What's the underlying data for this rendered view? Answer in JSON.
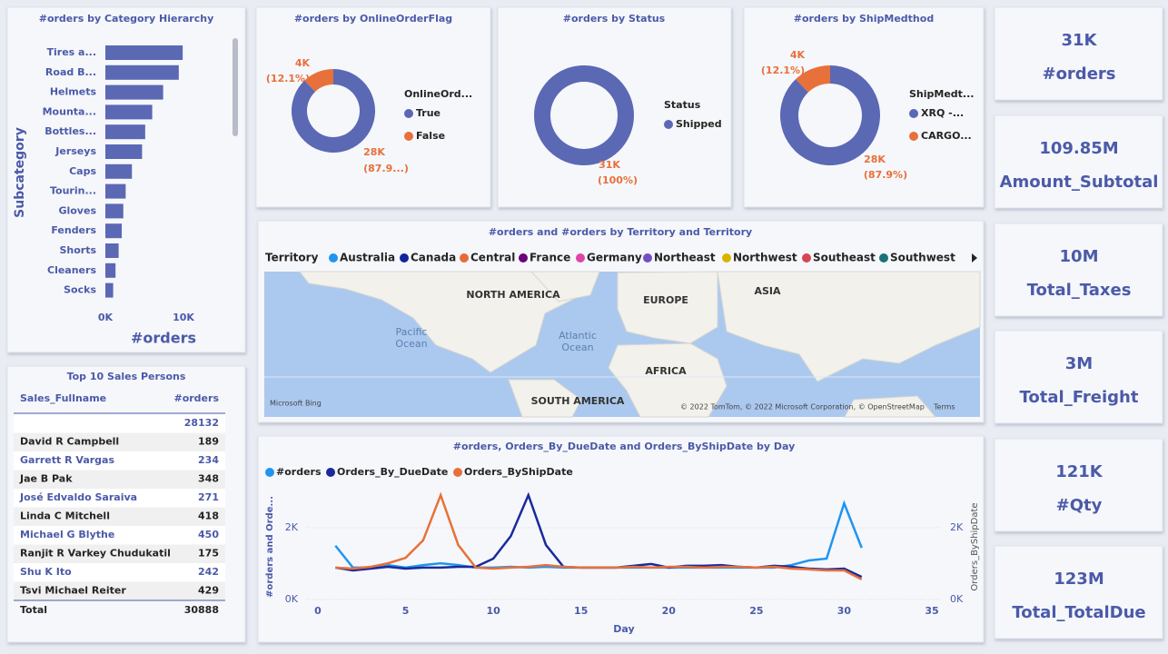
{
  "chart_data": [
    {
      "type": "bar",
      "orientation": "horizontal",
      "title": "#orders by Category Hierarchy",
      "y_label": "Subcategory",
      "x_label": "#orders",
      "categories": [
        "Tires a...",
        "Road B...",
        "Helmets",
        "Mounta...",
        "Bottles...",
        "Jerseys",
        "Caps",
        "Tourin...",
        "Gloves",
        "Fenders",
        "Shorts",
        "Cleaners",
        "Socks"
      ],
      "values": [
        9900,
        9400,
        7400,
        6000,
        5100,
        4700,
        3400,
        2600,
        2300,
        2100,
        1700,
        1300,
        1000
      ],
      "color": "#5b68b4",
      "xlim": [
        0,
        15000
      ],
      "xticks": [
        {
          "value": 0,
          "label": "0K"
        },
        {
          "value": 10000,
          "label": "10K"
        }
      ]
    },
    {
      "type": "donut",
      "title": "#orders by OnlineOrderFlag",
      "legend_title": "OnlineOrd...",
      "categories": [
        "True",
        "False"
      ],
      "values": [
        27659,
        3806
      ],
      "value_labels": [
        "28K",
        "4K"
      ],
      "percent_labels": [
        "(87.9...)",
        "(12.1%)"
      ],
      "colors": [
        "#5b68b4",
        "#e8703a"
      ]
    },
    {
      "type": "donut",
      "title": "#orders by Status",
      "legend_title": "Status",
      "categories": [
        "Shipped"
      ],
      "values": [
        31465
      ],
      "value_labels": [
        "31K"
      ],
      "percent_labels": [
        "(100%)"
      ],
      "colors": [
        "#5b68b4"
      ]
    },
    {
      "type": "donut",
      "title": "#orders by ShipMedthod",
      "legend_title": "ShipMedt...",
      "categories": [
        "XRQ -...",
        "CARGO..."
      ],
      "values": [
        27659,
        3806
      ],
      "value_labels": [
        "28K",
        "4K"
      ],
      "percent_labels": [
        "(87.9%)",
        "(12.1%)"
      ],
      "colors": [
        "#5b68b4",
        "#e8703a"
      ]
    },
    {
      "type": "line",
      "title": "#orders, Orders_By_DueDate and Orders_ByShipDate by Day",
      "x_label": "Day",
      "y_label": "#orders and Orde...",
      "y2_label": "Orders_ByShipDate",
      "x": [
        1,
        2,
        3,
        4,
        5,
        6,
        7,
        8,
        9,
        10,
        11,
        12,
        13,
        14,
        15,
        16,
        17,
        18,
        19,
        20,
        21,
        22,
        23,
        24,
        25,
        26,
        27,
        28,
        29,
        30,
        31
      ],
      "series": [
        {
          "name": "#orders",
          "color": "#1f95f0",
          "values": [
            1500,
            890,
            890,
            960,
            890,
            960,
            1010,
            960,
            890,
            890,
            910,
            890,
            910,
            890,
            890,
            890,
            890,
            890,
            890,
            890,
            890,
            890,
            890,
            890,
            890,
            890,
            960,
            1090,
            1140,
            2680,
            1440
          ]
        },
        {
          "name": "Orders_By_DueDate",
          "color": "#1a2a9c",
          "values": [
            890,
            810,
            860,
            910,
            860,
            890,
            890,
            910,
            910,
            1140,
            1770,
            2910,
            1520,
            910,
            890,
            890,
            890,
            940,
            990,
            890,
            940,
            940,
            960,
            910,
            890,
            940,
            910,
            860,
            840,
            860,
            630
          ]
        },
        {
          "name": "Orders_ByShipDate",
          "color": "#e8703a",
          "axis": "y2",
          "values": [
            890,
            860,
            910,
            1010,
            1160,
            1650,
            2910,
            1520,
            890,
            860,
            890,
            910,
            960,
            910,
            890,
            890,
            890,
            910,
            890,
            910,
            910,
            890,
            910,
            910,
            890,
            910,
            860,
            840,
            810,
            810,
            560
          ]
        }
      ],
      "xlim": [
        0,
        35
      ],
      "xticks": [
        0,
        5,
        10,
        15,
        20,
        25,
        30,
        35
      ],
      "ylim": [
        0,
        3000
      ],
      "yticks": [
        {
          "value": 0,
          "label": "0K"
        },
        {
          "value": 2000,
          "label": "2K"
        }
      ],
      "y2lim": [
        0,
        3000
      ],
      "y2ticks": [
        {
          "value": 0,
          "label": "0K"
        },
        {
          "value": 2000,
          "label": "2K"
        }
      ]
    }
  ],
  "map": {
    "title": "#orders and #orders by Territory and Territory",
    "legend_title": "Territory",
    "territories": [
      {
        "name": "Australia",
        "color": "#1f95f0"
      },
      {
        "name": "Canada",
        "color": "#12239e"
      },
      {
        "name": "Central",
        "color": "#e66c37"
      },
      {
        "name": "France",
        "color": "#6b007b"
      },
      {
        "name": "Germany",
        "color": "#e044a7"
      },
      {
        "name": "Northeast",
        "color": "#744ec2"
      },
      {
        "name": "Northwest",
        "color": "#d9b300"
      },
      {
        "name": "Southeast",
        "color": "#d64550"
      },
      {
        "name": "Southwest",
        "color": "#197278"
      }
    ],
    "labels": [
      {
        "lines": [
          "NORTH AMERICA"
        ]
      },
      {
        "lines": [
          "EUROPE"
        ]
      },
      {
        "lines": [
          "ASIA"
        ]
      },
      {
        "lines": [
          "AFRICA"
        ]
      },
      {
        "lines": [
          "SOUTH AMERICA"
        ]
      },
      {
        "lines": [
          "Pacific",
          "Ocean"
        ]
      },
      {
        "lines": [
          "Atlantic",
          "Ocean"
        ]
      }
    ],
    "attribution": [
      "Microsoft Bing",
      "© 2022 TomTom, © 2022 Microsoft Corporation, © OpenStreetMap",
      "Terms"
    ]
  },
  "table": {
    "title": "Top 10 Sales Persons",
    "columns": [
      "Sales_Fullname",
      "#orders"
    ],
    "rows": [
      [
        null,
        28132
      ],
      [
        "David R Campbell",
        189
      ],
      [
        "Garrett R Vargas",
        234
      ],
      [
        "Jae B Pak",
        348
      ],
      [
        "José Edvaldo Saraiva",
        271
      ],
      [
        "Linda C Mitchell",
        418
      ],
      [
        "Michael G Blythe",
        450
      ],
      [
        "Ranjit R Varkey Chudukatil",
        175
      ],
      [
        "Shu K Ito",
        242
      ],
      [
        "Tsvi Michael Reiter",
        429
      ]
    ],
    "total": [
      "Total",
      30888
    ]
  },
  "cards": [
    {
      "value": "31K",
      "label": "#orders"
    },
    {
      "value": "109.85M",
      "label": "Amount_Subtotal"
    },
    {
      "value": "10M",
      "label": "Total_Taxes"
    },
    {
      "value": "3M",
      "label": "Total_Freight"
    },
    {
      "value": "121K",
      "label": "#Qty"
    },
    {
      "value": "123M",
      "label": "Total_TotalDue"
    }
  ]
}
